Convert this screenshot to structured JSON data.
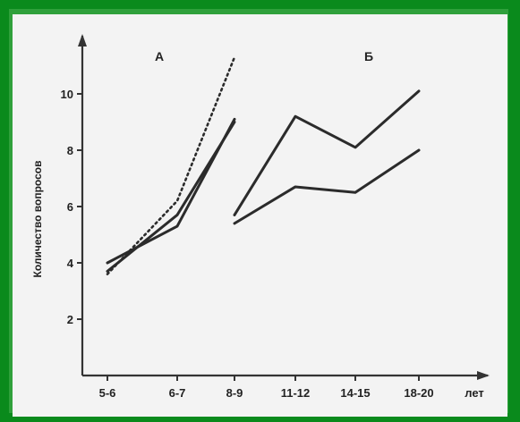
{
  "chart_data": {
    "type": "line",
    "xlabel": "лет",
    "ylabel": "Количество вопросов",
    "categories": [
      "5-6",
      "6-7",
      "8-9",
      "11-12",
      "14-15",
      "18-20"
    ],
    "y_ticks": [
      2,
      4,
      6,
      8,
      10
    ],
    "ylim": [
      0,
      11.5
    ],
    "panels": [
      {
        "label": "А",
        "categories": [
          "5-6",
          "6-7",
          "8-9"
        ]
      },
      {
        "label": "Б",
        "categories": [
          "8-9",
          "11-12",
          "14-15",
          "18-20"
        ]
      }
    ],
    "series": [
      {
        "panel": 0,
        "style": "solid",
        "x": [
          "5-6",
          "6-7",
          "8-9"
        ],
        "values": [
          4.0,
          5.3,
          9.1
        ]
      },
      {
        "panel": 0,
        "style": "solid",
        "x": [
          "5-6",
          "6-7",
          "8-9"
        ],
        "values": [
          3.7,
          5.7,
          9.0
        ]
      },
      {
        "panel": 0,
        "style": "dotted",
        "x": [
          "5-6",
          "6-7",
          "8-9"
        ],
        "values": [
          3.6,
          6.2,
          11.3
        ]
      },
      {
        "panel": 1,
        "style": "solid",
        "x": [
          "8-9",
          "11-12",
          "14-15",
          "18-20"
        ],
        "values": [
          5.7,
          9.2,
          8.1,
          10.1
        ]
      },
      {
        "panel": 1,
        "style": "solid",
        "x": [
          "8-9",
          "11-12",
          "14-15",
          "18-20"
        ],
        "values": [
          5.4,
          6.7,
          6.5,
          8.0
        ]
      }
    ],
    "grid": false,
    "legend": "none"
  }
}
